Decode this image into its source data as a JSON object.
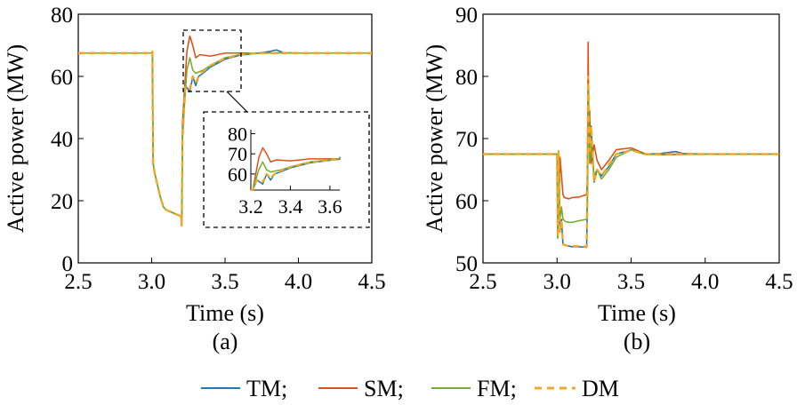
{
  "chart_data": [
    {
      "panel_label": "(a)",
      "type": "line",
      "xlabel": "Time (s)",
      "ylabel": "Active power (MW)",
      "xlim": [
        2.5,
        4.5
      ],
      "ylim": [
        0,
        80
      ],
      "xticks": [
        "2.5",
        "3.0",
        "3.5",
        "4.0",
        "4.5"
      ],
      "yticks": [
        "0",
        "20",
        "40",
        "60",
        "80"
      ],
      "grid": false,
      "series": [
        {
          "name": "TM",
          "color": "#1f77b4",
          "dash": false,
          "x": [
            2.5,
            3.0,
            3.005,
            3.01,
            3.02,
            3.04,
            3.06,
            3.08,
            3.1,
            3.15,
            3.2,
            3.205,
            3.21,
            3.23,
            3.26,
            3.28,
            3.3,
            3.32,
            3.35,
            3.4,
            3.5,
            3.6,
            3.7,
            3.8,
            3.85,
            3.9,
            4.0,
            4.5
          ],
          "y": [
            67.5,
            67.5,
            68.0,
            32,
            29,
            25,
            21,
            18,
            17,
            16,
            15,
            12,
            40,
            57,
            55,
            60,
            57,
            60,
            61,
            63,
            65.5,
            66.8,
            67.3,
            68.0,
            68.5,
            67.6,
            67.5,
            67.5
          ]
        },
        {
          "name": "SM",
          "color": "#d95319",
          "dash": false,
          "x": [
            2.5,
            3.0,
            3.005,
            3.01,
            3.02,
            3.04,
            3.06,
            3.08,
            3.1,
            3.15,
            3.2,
            3.205,
            3.21,
            3.24,
            3.26,
            3.28,
            3.3,
            3.33,
            3.4,
            3.5,
            3.6,
            3.7,
            3.8,
            4.0,
            4.5
          ],
          "y": [
            67.5,
            67.5,
            68.0,
            32,
            29,
            25,
            21,
            18,
            17,
            16,
            15,
            12,
            45,
            68,
            73,
            70,
            66,
            67,
            66.5,
            67.5,
            67.5,
            67.5,
            67.6,
            67.5,
            67.5
          ]
        },
        {
          "name": "FM",
          "color": "#77ac30",
          "dash": false,
          "x": [
            2.5,
            3.0,
            3.005,
            3.01,
            3.02,
            3.04,
            3.06,
            3.08,
            3.1,
            3.15,
            3.2,
            3.205,
            3.21,
            3.24,
            3.26,
            3.28,
            3.3,
            3.35,
            3.4,
            3.5,
            3.6,
            3.7,
            3.8,
            4.0,
            4.5
          ],
          "y": [
            67.5,
            67.5,
            68.0,
            32,
            29,
            25,
            21,
            18,
            17,
            16,
            15,
            12,
            42,
            62,
            66,
            62,
            61,
            62,
            63.5,
            66,
            67,
            67.4,
            67.5,
            67.5,
            67.5
          ]
        },
        {
          "name": "DM",
          "color": "#f5a623",
          "dash": true,
          "x": [
            2.5,
            3.0,
            3.005,
            3.01,
            3.02,
            3.04,
            3.06,
            3.08,
            3.1,
            3.15,
            3.2,
            3.205,
            3.21,
            3.23,
            3.26,
            3.28,
            3.3,
            3.32,
            3.35,
            3.4,
            3.5,
            3.6,
            3.7,
            3.8,
            4.0,
            4.5
          ],
          "y": [
            67.5,
            67.5,
            68.0,
            32,
            29,
            25,
            21,
            18,
            17,
            16,
            15,
            12,
            40,
            57,
            56,
            60,
            58,
            60,
            61.5,
            63.5,
            65.8,
            67.0,
            67.4,
            67.5,
            67.5,
            67.5
          ]
        }
      ],
      "inset": {
        "xlim": [
          3.2,
          3.65
        ],
        "ylim": [
          52,
          82
        ],
        "xticks": [
          "3.2",
          "3.4",
          "3.6"
        ],
        "yticks": [
          "60",
          "70",
          "80"
        ]
      }
    },
    {
      "panel_label": "(b)",
      "type": "line",
      "xlabel": "Time (s)",
      "ylabel": "Active power (MW)",
      "xlim": [
        2.5,
        4.5
      ],
      "ylim": [
        50,
        90
      ],
      "xticks": [
        "2.5",
        "3.0",
        "3.5",
        "4.0",
        "4.5"
      ],
      "yticks": [
        "50",
        "60",
        "70",
        "80",
        "90"
      ],
      "grid": false,
      "series": [
        {
          "name": "TM",
          "color": "#1f77b4",
          "dash": false,
          "x": [
            2.5,
            3.0,
            3.005,
            3.01,
            3.02,
            3.03,
            3.04,
            3.06,
            3.1,
            3.15,
            3.2,
            3.205,
            3.21,
            3.22,
            3.23,
            3.25,
            3.27,
            3.3,
            3.35,
            3.4,
            3.5,
            3.6,
            3.7,
            3.8,
            3.85,
            4.0,
            4.5
          ],
          "y": [
            67.5,
            67.5,
            54,
            68,
            55,
            57,
            53,
            52.8,
            52.6,
            52.6,
            52.5,
            60,
            79,
            68,
            72,
            63,
            65,
            64,
            65.5,
            67.5,
            68.2,
            67.5,
            67.6,
            67.9,
            67.6,
            67.5,
            67.5
          ]
        },
        {
          "name": "SM",
          "color": "#d95319",
          "dash": false,
          "x": [
            2.5,
            3.0,
            3.005,
            3.01,
            3.015,
            3.02,
            3.03,
            3.04,
            3.05,
            3.08,
            3.1,
            3.15,
            3.2,
            3.205,
            3.21,
            3.215,
            3.22,
            3.23,
            3.25,
            3.27,
            3.3,
            3.35,
            3.4,
            3.5,
            3.6,
            3.7,
            4.0,
            4.5
          ],
          "y": [
            67.5,
            67.5,
            55,
            68,
            61,
            67,
            64,
            61,
            60.5,
            60.3,
            60.5,
            60.6,
            61,
            64,
            85.5,
            70,
            74.5,
            66,
            69,
            66.5,
            65,
            66.5,
            68.2,
            68.5,
            67.5,
            67.4,
            67.5,
            67.5
          ]
        },
        {
          "name": "FM",
          "color": "#77ac30",
          "dash": false,
          "x": [
            2.5,
            3.0,
            3.005,
            3.01,
            3.02,
            3.03,
            3.04,
            3.06,
            3.1,
            3.15,
            3.2,
            3.205,
            3.21,
            3.22,
            3.23,
            3.25,
            3.27,
            3.3,
            3.35,
            3.4,
            3.5,
            3.6,
            3.7,
            4.0,
            4.5
          ],
          "y": [
            67.5,
            67.5,
            54,
            68,
            57,
            59,
            57,
            56.6,
            56.5,
            56.8,
            57,
            62,
            78,
            66,
            70,
            64,
            65,
            63.5,
            65,
            67,
            68.2,
            67.4,
            67.5,
            67.5,
            67.5
          ]
        },
        {
          "name": "DM",
          "color": "#f5a623",
          "dash": true,
          "x": [
            2.5,
            3.0,
            3.005,
            3.01,
            3.02,
            3.03,
            3.04,
            3.06,
            3.1,
            3.15,
            3.2,
            3.205,
            3.21,
            3.22,
            3.23,
            3.25,
            3.27,
            3.3,
            3.35,
            3.4,
            3.5,
            3.6,
            3.7,
            4.0,
            4.5
          ],
          "y": [
            67.5,
            67.5,
            54,
            68,
            55,
            57,
            53,
            52.8,
            52.7,
            52.7,
            52.6,
            60,
            80,
            68,
            72,
            63,
            65,
            64,
            65.8,
            67.5,
            68.1,
            67.5,
            67.5,
            67.5,
            67.5
          ]
        }
      ]
    }
  ],
  "legend": {
    "placement": "bottom-center",
    "entries": [
      {
        "label": "TM;",
        "color": "#1f77b4",
        "dash": false
      },
      {
        "label": "SM;",
        "color": "#d95319",
        "dash": false
      },
      {
        "label": "FM;",
        "color": "#77ac30",
        "dash": false
      },
      {
        "label": "DM",
        "color": "#f5a623",
        "dash": true
      }
    ]
  }
}
